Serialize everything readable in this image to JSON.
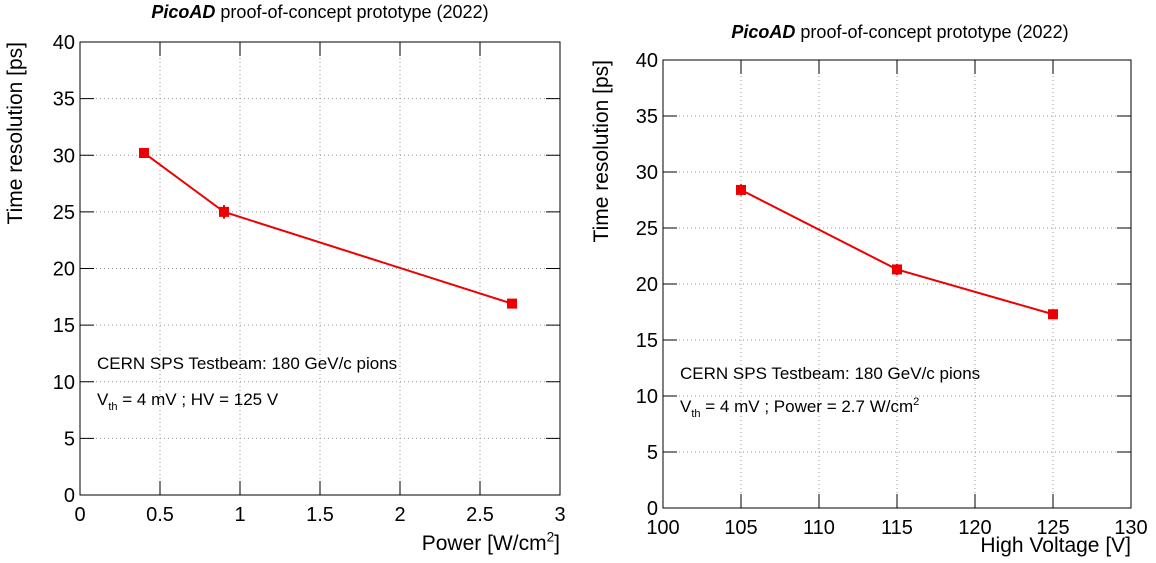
{
  "chart_data": [
    {
      "type": "line",
      "title_emphasis": "PicoAD",
      "title": "proof-of-concept prototype (2022)",
      "x_label": [
        {
          "text": "Power [W/cm"
        },
        {
          "text": "2",
          "script": "sup"
        },
        {
          "text": "]"
        }
      ],
      "y_label": [
        {
          "text": "Time resolution [ps]"
        }
      ],
      "annotations": [
        [
          {
            "text": "CERN SPS Testbeam: 180 GeV/c pions"
          }
        ],
        [
          {
            "text": "V"
          },
          {
            "text": "th",
            "script": "sub"
          },
          {
            "text": " = 4 mV ; HV = 125 V"
          }
        ]
      ],
      "x": [
        0.4,
        0.9,
        2.7
      ],
      "series": [
        {
          "color": "#ee0000",
          "values": [
            30.2,
            25.0,
            16.9
          ],
          "errors": [
            0.3,
            0.6,
            0.4
          ]
        }
      ],
      "xlim": [
        0,
        3
      ],
      "xticks": [
        0,
        0.5,
        1,
        1.5,
        2,
        2.5,
        3
      ],
      "ylim": [
        0,
        40
      ],
      "yticks": [
        0,
        5,
        10,
        15,
        20,
        25,
        30,
        35,
        40
      ],
      "grid": true
    },
    {
      "type": "line",
      "title_emphasis": "PicoAD",
      "title": "proof-of-concept prototype (2022)",
      "x_label": [
        {
          "text": "High Voltage [V]"
        }
      ],
      "y_label": [
        {
          "text": "Time resolution [ps]"
        }
      ],
      "annotations": [
        [
          {
            "text": "CERN SPS Testbeam: 180 GeV/c pions"
          }
        ],
        [
          {
            "text": "V"
          },
          {
            "text": "th",
            "script": "sub"
          },
          {
            "text": " = 4 mV ; Power = 2.7 W/cm"
          },
          {
            "text": "2",
            "script": "sup"
          }
        ]
      ],
      "x": [
        105,
        115,
        125
      ],
      "series": [
        {
          "color": "#ee0000",
          "values": [
            28.4,
            21.3,
            17.3
          ],
          "errors": [
            0.5,
            0.5,
            0.2
          ]
        }
      ],
      "xlim": [
        100,
        130
      ],
      "xticks": [
        100,
        105,
        110,
        115,
        120,
        125,
        130
      ],
      "ylim": [
        0,
        40
      ],
      "yticks": [
        0,
        5,
        10,
        15,
        20,
        25,
        30,
        35,
        40
      ],
      "grid": true
    }
  ]
}
